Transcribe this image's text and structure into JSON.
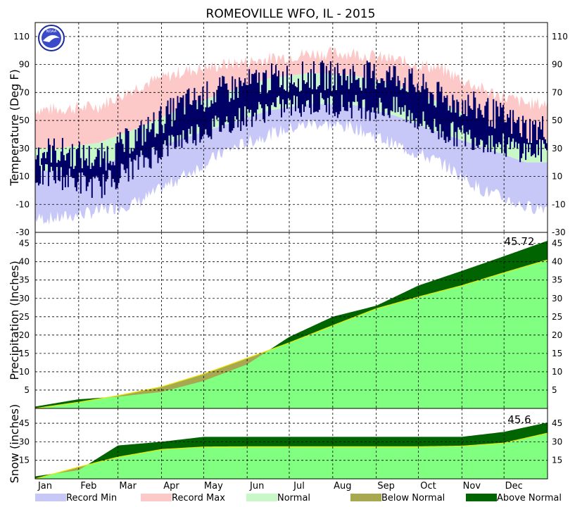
{
  "chart_data": {
    "type": "climate-summary",
    "title": "ROMEOVILLE  WFO, IL - 2015",
    "logo_text": "NOAA",
    "months": [
      "Jan",
      "Feb",
      "Mar",
      "Apr",
      "May",
      "Jun",
      "Jul",
      "Aug",
      "Sep",
      "Oct",
      "Nov",
      "Dec"
    ],
    "legend": [
      {
        "label": "Record Min",
        "color": "#c8c8f8"
      },
      {
        "label": "Record Max",
        "color": "#fcc8c8"
      },
      {
        "label": "Normal",
        "color": "#c8f8c8"
      },
      {
        "label": "Below Normal",
        "color": "#a8a850"
      },
      {
        "label": "Above Normal",
        "color": "#006400"
      }
    ],
    "temperature": {
      "ylabel": "Temperature (Deg F)",
      "ylim": [
        -30,
        120
      ],
      "ticks": [
        -30,
        -10,
        10,
        30,
        50,
        70,
        90,
        110
      ],
      "record_max_month": [
        58,
        60,
        75,
        85,
        90,
        94,
        98,
        98,
        93,
        87,
        72,
        62
      ],
      "record_min_month": [
        -20,
        -15,
        -8,
        10,
        28,
        40,
        48,
        45,
        32,
        20,
        0,
        -12
      ],
      "normal_high_month": [
        30,
        34,
        45,
        59,
        70,
        80,
        84,
        82,
        75,
        63,
        48,
        35
      ],
      "normal_low_month": [
        14,
        18,
        27,
        37,
        47,
        57,
        62,
        61,
        53,
        41,
        31,
        20
      ],
      "observed_high_month": [
        28,
        22,
        40,
        62,
        72,
        80,
        82,
        82,
        82,
        66,
        58,
        44
      ],
      "observed_low_month": [
        10,
        2,
        20,
        38,
        48,
        58,
        62,
        60,
        58,
        42,
        36,
        28
      ]
    },
    "precipitation": {
      "ylabel": "Precipitation (Inches)",
      "ylim": [
        0,
        48
      ],
      "ticks": [
        5,
        10,
        15,
        20,
        25,
        30,
        35,
        40,
        45
      ],
      "total_label": "45.72",
      "observed_cum_month": [
        0.5,
        2.5,
        3.2,
        4.5,
        7.5,
        12,
        19.5,
        25,
        28,
        33.5,
        37.5,
        41.5,
        45.72
      ],
      "normal_cum_month": [
        0,
        1.7,
        3.5,
        5.9,
        9.4,
        13.7,
        17.9,
        22.6,
        27.2,
        30.4,
        33.5,
        37.0,
        40.5
      ]
    },
    "snow": {
      "ylabel": "Snow (inches)",
      "ylim": [
        0,
        57
      ],
      "ticks": [
        15,
        30,
        45
      ],
      "total_label": "45.6",
      "observed_cum_month": [
        2.0,
        7.0,
        27.0,
        30.0,
        34.0,
        34.0,
        34.0,
        34.0,
        34.0,
        34.0,
        34.0,
        38.0,
        45.6
      ],
      "normal_cum_month": [
        0,
        9.6,
        17.6,
        23.8,
        25.8,
        26,
        26,
        26,
        26,
        26,
        26.5,
        29.0,
        37.0
      ]
    }
  }
}
